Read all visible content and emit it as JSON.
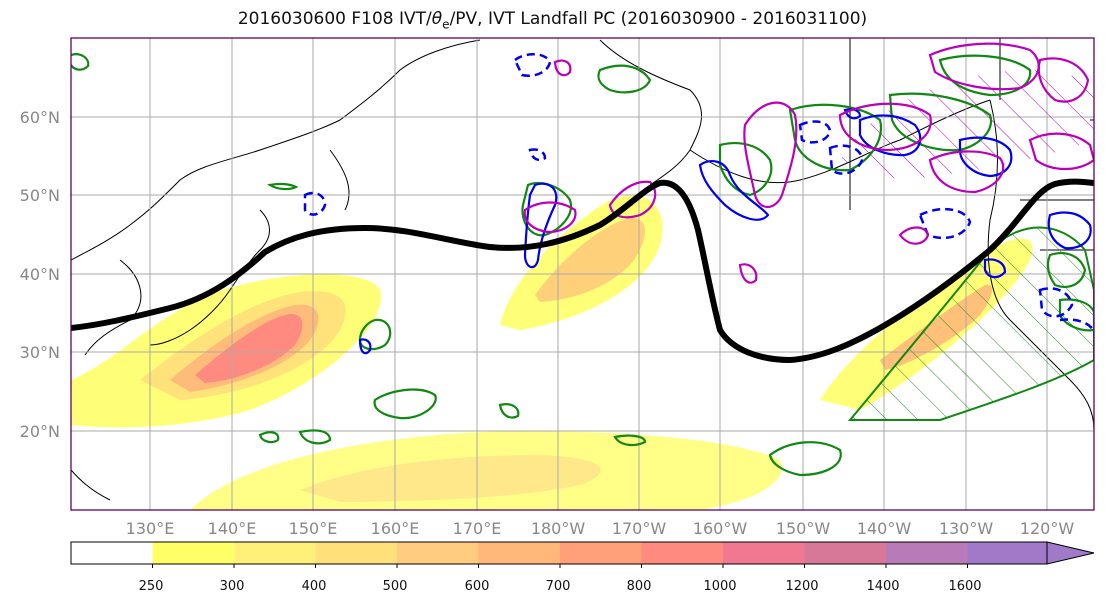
{
  "title": {
    "prefix": "2016030600 F108 IVT/",
    "theta": "θ",
    "sub": "e",
    "suffix": "/PV, IVT Landfall PC (2016030900 - 2016031100)"
  },
  "lat_labels": [
    "60°N",
    "50°N",
    "40°N",
    "30°N",
    "20°N"
  ],
  "lon_labels": [
    "130°E",
    "140°E",
    "150°E",
    "160°E",
    "170°E",
    "180°W",
    "170°W",
    "160°W",
    "150°W",
    "140°W",
    "130°W",
    "120°W"
  ],
  "colorbar": {
    "ticks": [
      "250",
      "300",
      "400",
      "500",
      "600",
      "700",
      "800",
      "1000",
      "1200",
      "1400",
      "1600"
    ],
    "colors": [
      "#ffffff",
      "#ffff66",
      "#fff07a",
      "#ffe07a",
      "#ffcc80",
      "#ffb87a",
      "#ffa07a",
      "#ff8a80",
      "#f07890",
      "#d87898",
      "#b87ab8",
      "#a07ac8"
    ]
  },
  "legend_colors": {
    "pv_contour": "#bb00bb",
    "theta_e_contour": "#0000ee",
    "green_contour": "#118811",
    "landfall_line": "#000000"
  }
}
